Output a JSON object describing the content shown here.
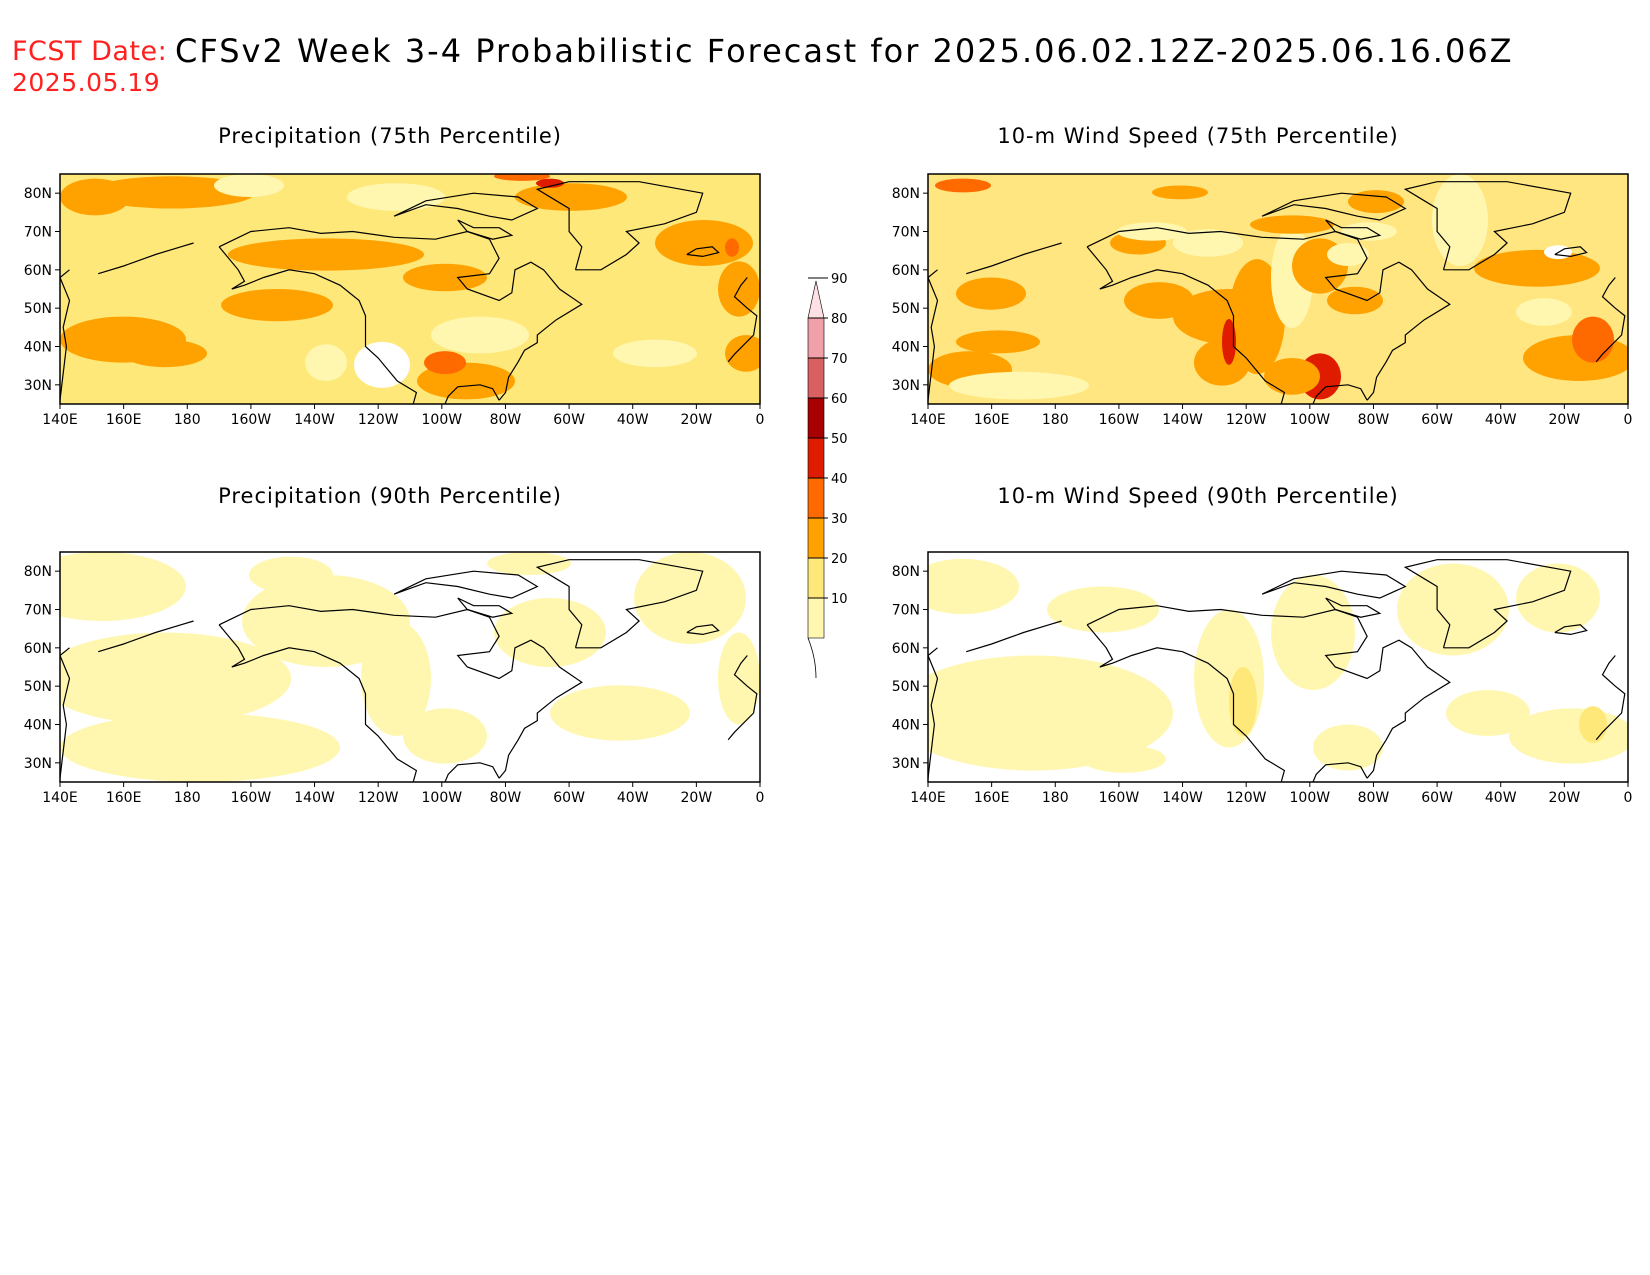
{
  "header": {
    "fcst_label": "FCST Date:",
    "fcst_date": "2025.05.19",
    "title": "CFSv2 Week 3-4 Probabilistic Forecast for 2025.06.02.12Z-2025.06.16.06Z"
  },
  "panels": [
    {
      "id": "precip75",
      "title": "Precipitation (75th Percentile)",
      "level": "high",
      "base_color": "#ffe87a"
    },
    {
      "id": "wind75",
      "title": "10-m Wind Speed (75th Percentile)",
      "level": "high",
      "base_color": "#ffe680"
    },
    {
      "id": "precip90",
      "title": "Precipitation (90th Percentile)",
      "level": "low",
      "base_color": "#ffffff"
    },
    {
      "id": "wind90",
      "title": "10-m Wind Speed (90th Percentile)",
      "level": "low",
      "base_color": "#ffffff"
    }
  ],
  "axes": {
    "x_ticks": [
      "140E",
      "160E",
      "180",
      "160W",
      "140W",
      "120W",
      "100W",
      "80W",
      "60W",
      "40W",
      "20W",
      "0"
    ],
    "y_ticks": [
      "80N",
      "70N",
      "60N",
      "50N",
      "40N",
      "30N"
    ],
    "lon_range": [
      140,
      360
    ],
    "lat_range": [
      25,
      85
    ]
  },
  "colorbar": {
    "levels": [
      "10",
      "20",
      "30",
      "40",
      "50",
      "60",
      "70",
      "80",
      "90"
    ],
    "colors": [
      "#fff7b0",
      "#ffe87a",
      "#ffa200",
      "#ff6a00",
      "#e01c00",
      "#a80000",
      "#d86060",
      "#f0a0a8",
      "#ffe0e4"
    ]
  }
}
